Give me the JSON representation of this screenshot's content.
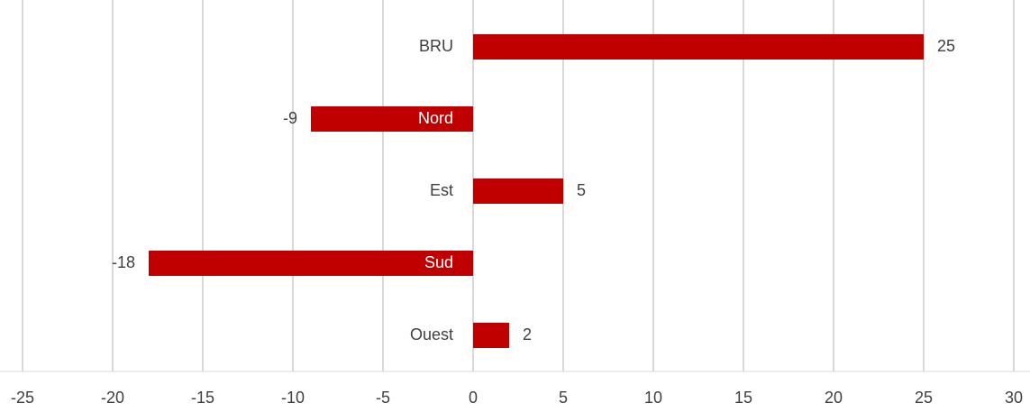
{
  "chart_data": {
    "type": "bar",
    "orientation": "horizontal",
    "categories": [
      "BRU",
      "Nord",
      "Est",
      "Sud",
      "Ouest"
    ],
    "values": [
      25,
      -9,
      5,
      -18,
      2
    ],
    "color": "#c00000",
    "xlim": [
      -25,
      30
    ],
    "xticks": [
      -25,
      -20,
      -15,
      -10,
      -5,
      0,
      5,
      10,
      15,
      20,
      25,
      30
    ],
    "grid": true
  }
}
